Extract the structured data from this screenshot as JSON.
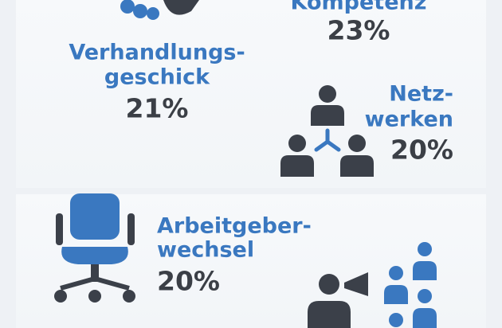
{
  "items": [
    {
      "label": [
        "Kompetenz"
      ],
      "value": "23%"
    },
    {
      "label": [
        "Verhandlungs-",
        "geschick"
      ],
      "value": "21%"
    },
    {
      "label": [
        "Netz-",
        "werken"
      ],
      "value": "20%"
    },
    {
      "label": [
        "Arbeitgeber-",
        "wechsel"
      ],
      "value": "20%"
    }
  ]
}
